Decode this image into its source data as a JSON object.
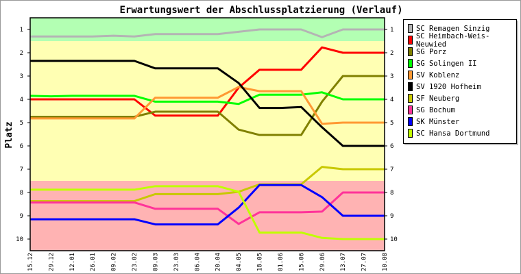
{
  "chart_data": {
    "type": "line",
    "title": "Erwartungswert der Abschlussplatzierung (Verlauf)",
    "ylabel": "Platz",
    "xlabel": "",
    "ylim": [
      0.5,
      10.5
    ],
    "y_inverted": true,
    "yticks": [
      "1",
      "2",
      "3",
      "4",
      "5",
      "6",
      "7",
      "8",
      "9",
      "10"
    ],
    "categories": [
      "15.12",
      "29.12",
      "12.01",
      "26.01",
      "09.02",
      "23.02",
      "09.03",
      "23.03",
      "06.04",
      "20.04",
      "04.05",
      "18.05",
      "01.06",
      "15.06",
      "29.06",
      "13.07",
      "27.07",
      "10.08"
    ],
    "bands": [
      {
        "from": 0.5,
        "to": 1.5,
        "color": "#b3ffb3"
      },
      {
        "from": 1.5,
        "to": 7.5,
        "color": "#ffffb3"
      },
      {
        "from": 7.5,
        "to": 10.5,
        "color": "#ffb3b3"
      }
    ],
    "legend_position": "right",
    "series": [
      {
        "name": "SC Remagen Sinzig",
        "color": "#b4b4b4",
        "values": [
          1.3,
          1.3,
          1.3,
          1.3,
          1.27,
          1.3,
          1.2,
          1.2,
          1.2,
          1.2,
          1.1,
          1.0,
          1.0,
          1.0,
          1.33,
          1.0,
          1.0,
          1.0
        ]
      },
      {
        "name": "SC Heimbach-Weis-Neuwied",
        "color": "#ff0000",
        "values": [
          4.0,
          4.0,
          4.0,
          4.0,
          4.0,
          4.0,
          4.7,
          4.7,
          4.7,
          4.7,
          3.5,
          2.73,
          2.73,
          2.73,
          1.77,
          2.0,
          2.0,
          2.0
        ]
      },
      {
        "name": "SG Porz",
        "color": "#808000",
        "values": [
          4.75,
          4.75,
          4.75,
          4.75,
          4.75,
          4.75,
          4.53,
          4.53,
          4.53,
          4.53,
          5.3,
          5.53,
          5.53,
          5.53,
          4.1,
          3.0,
          3.0,
          3.0
        ]
      },
      {
        "name": "SG Solingen II",
        "color": "#00ff00",
        "values": [
          3.85,
          3.87,
          3.85,
          3.85,
          3.85,
          3.85,
          4.1,
          4.1,
          4.1,
          4.1,
          4.2,
          3.8,
          3.8,
          3.8,
          3.7,
          4.0,
          4.0,
          4.0
        ]
      },
      {
        "name": "SV Koblenz",
        "color": "#ff9933",
        "values": [
          4.82,
          4.82,
          4.82,
          4.82,
          4.82,
          4.82,
          3.93,
          3.93,
          3.93,
          3.93,
          3.47,
          3.65,
          3.65,
          3.65,
          5.05,
          5.0,
          5.0,
          5.0
        ]
      },
      {
        "name": "SV 1920 Hofheim",
        "color": "#000000",
        "values": [
          2.35,
          2.35,
          2.35,
          2.35,
          2.35,
          2.35,
          2.67,
          2.67,
          2.67,
          2.67,
          3.3,
          4.37,
          4.37,
          4.33,
          5.2,
          6.0,
          6.0,
          6.0
        ]
      },
      {
        "name": "SF Neuberg",
        "color": "#c8c800",
        "values": [
          8.37,
          8.37,
          8.37,
          8.37,
          8.37,
          8.37,
          8.07,
          8.07,
          8.07,
          8.07,
          7.97,
          7.65,
          7.65,
          7.65,
          6.9,
          7.0,
          7.0,
          7.0
        ]
      },
      {
        "name": "SG Bochum",
        "color": "#ff3399",
        "values": [
          8.43,
          8.43,
          8.43,
          8.43,
          8.43,
          8.43,
          8.7,
          8.7,
          8.7,
          8.7,
          9.35,
          8.85,
          8.85,
          8.85,
          8.82,
          8.0,
          8.0,
          8.0
        ]
      },
      {
        "name": "SK Münster",
        "color": "#0000ff",
        "values": [
          9.15,
          9.15,
          9.15,
          9.15,
          9.15,
          9.15,
          9.37,
          9.37,
          9.37,
          9.37,
          8.65,
          7.68,
          7.68,
          7.68,
          8.2,
          9.0,
          9.0,
          9.0
        ]
      },
      {
        "name": "SC Hansa Dortmund",
        "color": "#c0ff00",
        "values": [
          7.88,
          7.88,
          7.88,
          7.88,
          7.88,
          7.88,
          7.73,
          7.73,
          7.73,
          7.73,
          7.97,
          9.72,
          9.72,
          9.72,
          9.95,
          10.0,
          10.0,
          10.0
        ]
      }
    ]
  }
}
